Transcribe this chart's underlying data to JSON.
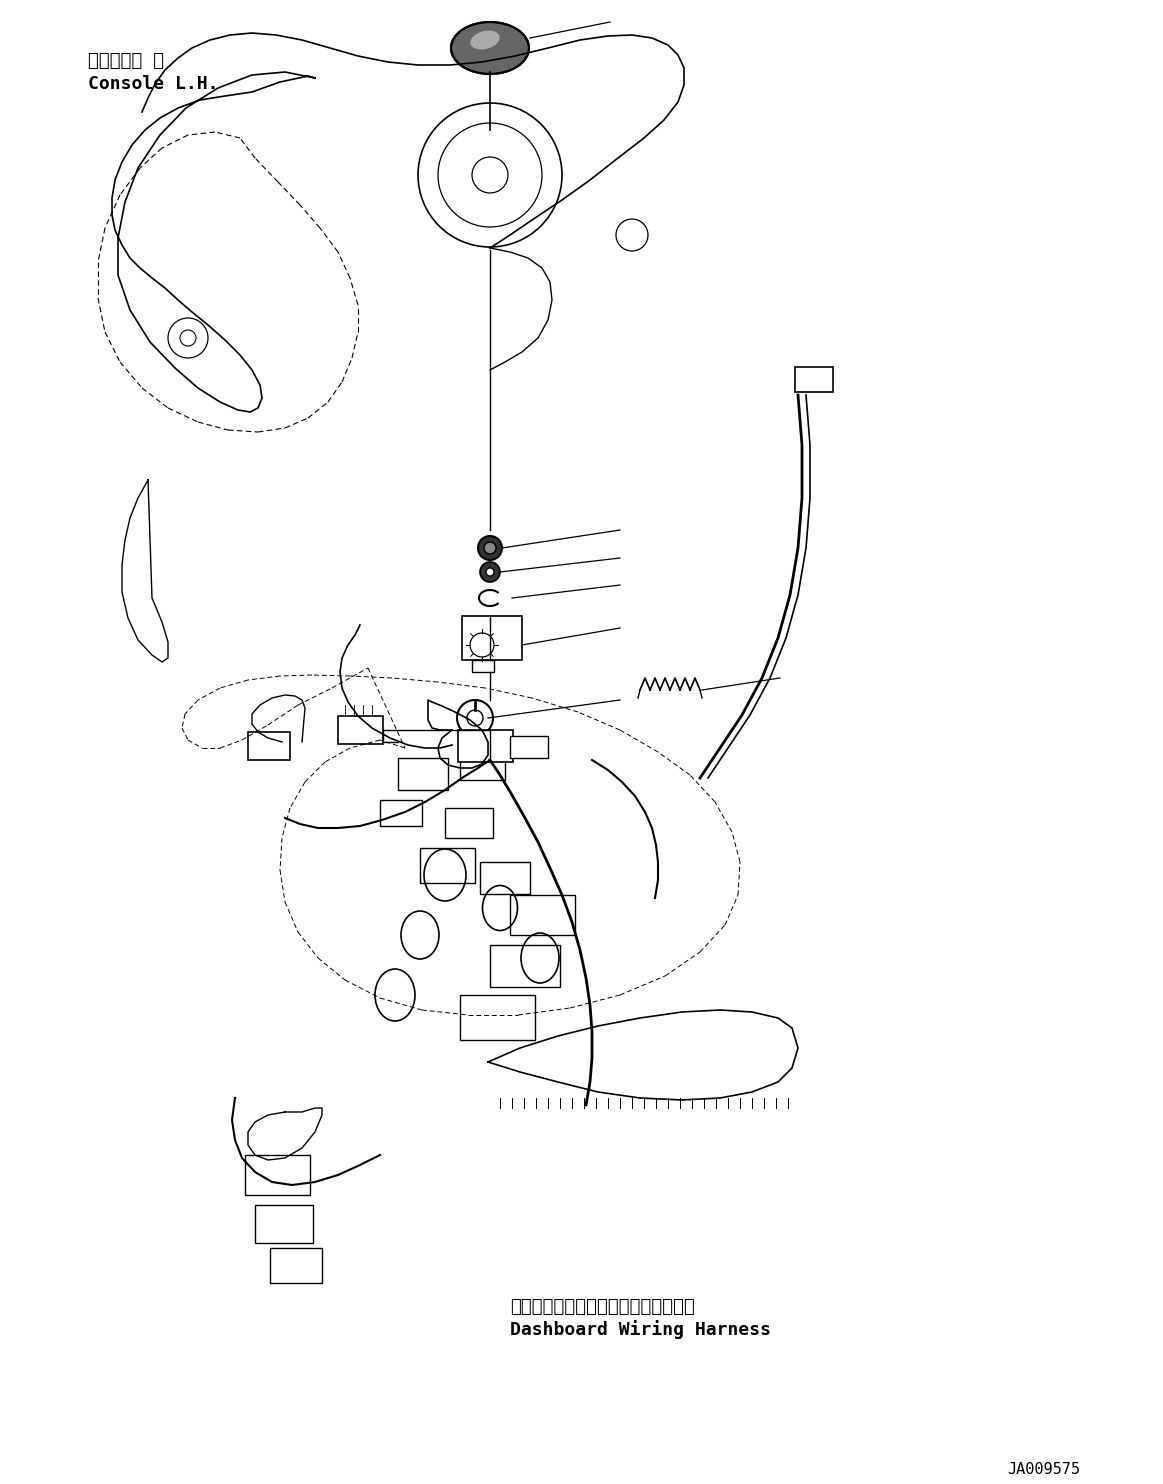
{
  "bg_color": "#ffffff",
  "line_color": "#000000",
  "text_color": "#000000",
  "label_top_jp": "コンソール 左",
  "label_top_en": "Console L.H.",
  "label_bottom_jp": "ダッシュボードワイヤリングハーネス",
  "label_bottom_en": "Dashboard Wiring Harness",
  "part_number": "JA009575",
  "figsize": [
    11.63,
    14.84
  ],
  "dpi": 100
}
